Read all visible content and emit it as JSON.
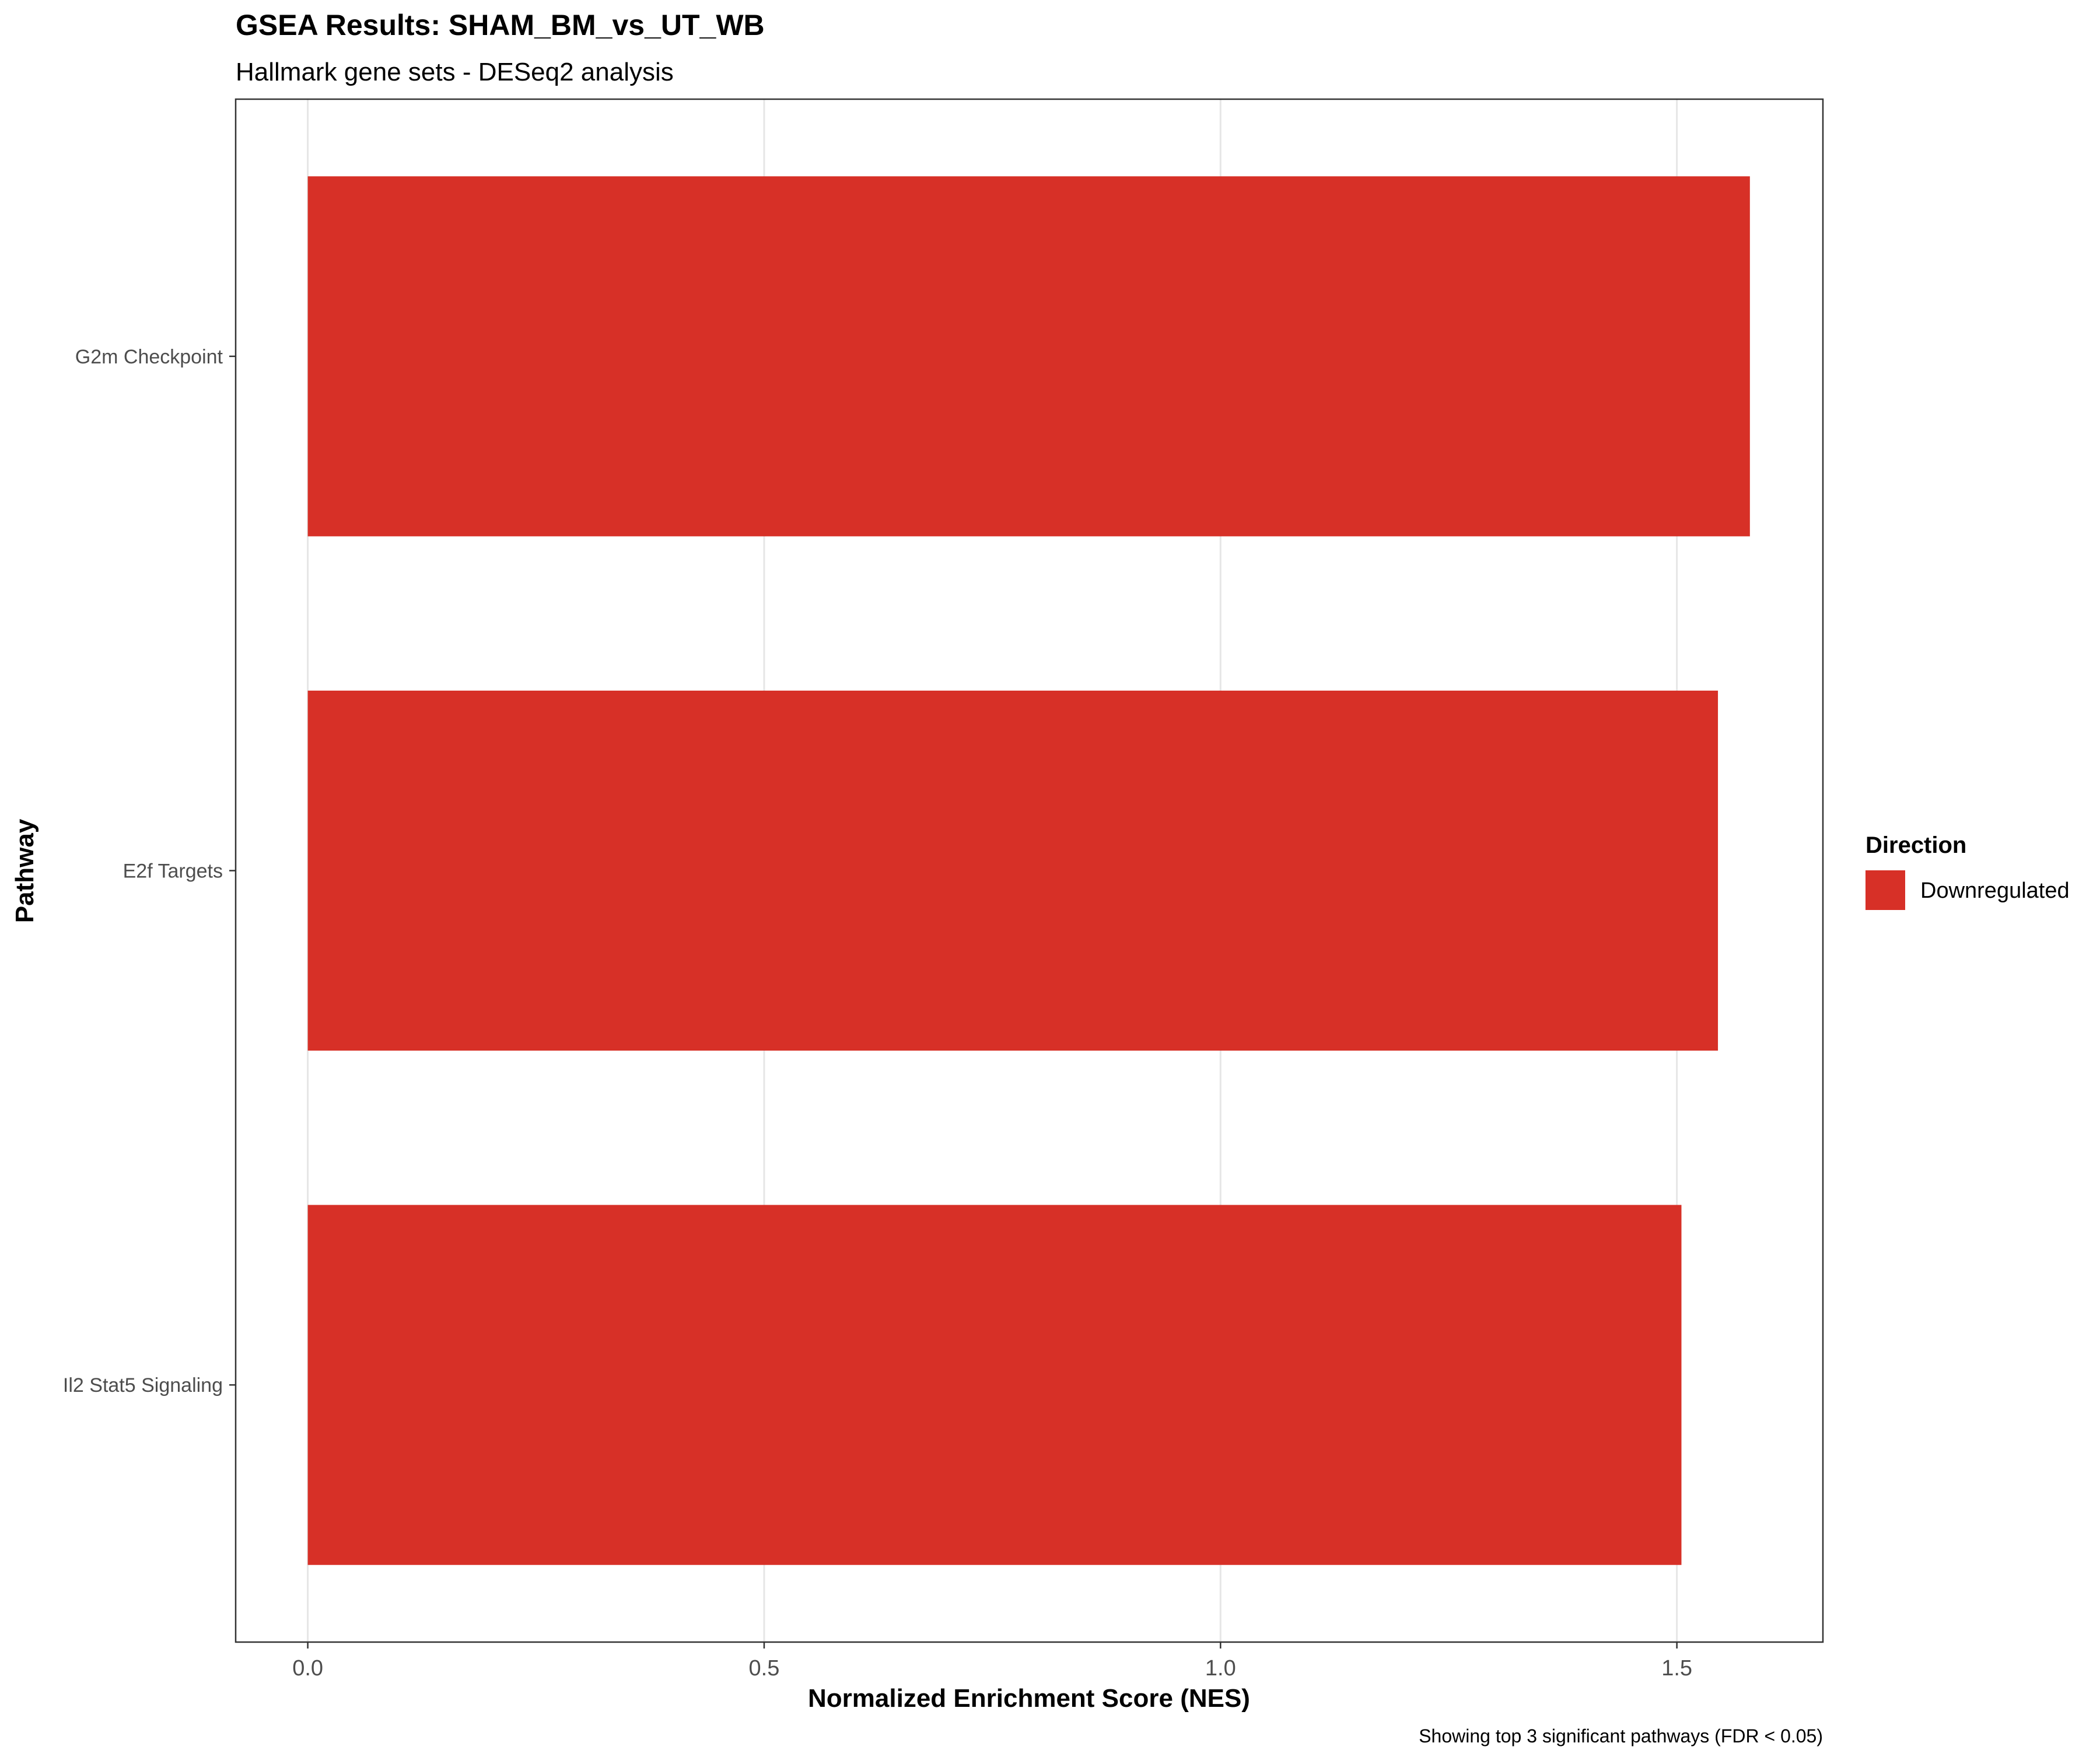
{
  "chart_data": {
    "type": "bar",
    "orientation": "horizontal",
    "title": "GSEA Results: SHAM_BM_vs_UT_WB",
    "subtitle": "Hallmark gene sets - DESeq2 analysis",
    "xlabel": "Normalized Enrichment Score (NES)",
    "ylabel": "Pathway",
    "caption": "Showing top 3 significant pathways (FDR < 0.05)",
    "categories": [
      "G2m Checkpoint",
      "E2f Targets",
      "Il2 Stat5 Signaling"
    ],
    "values": [
      1.58,
      1.545,
      1.505
    ],
    "bar_colors": [
      "#d73027",
      "#d73027",
      "#d73027"
    ],
    "xlim": [
      -0.079,
      1.66
    ],
    "xticks": [
      0.0,
      0.5,
      1.0,
      1.5
    ],
    "xtick_labels": [
      "0.0",
      "0.5",
      "1.0",
      "1.5"
    ],
    "grid": true,
    "legend": {
      "title": "Direction",
      "position": "right",
      "items": [
        {
          "label": "Downregulated",
          "color": "#d73027"
        }
      ]
    }
  }
}
